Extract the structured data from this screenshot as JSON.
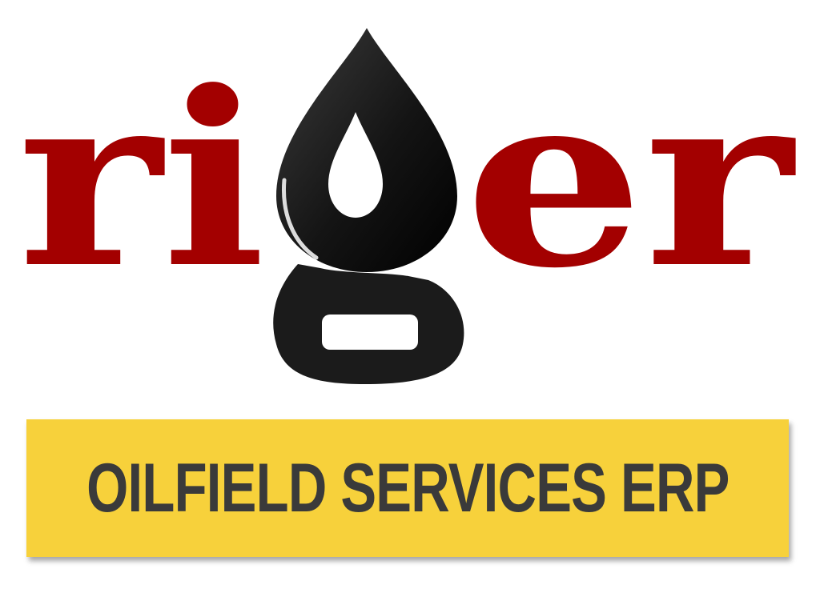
{
  "logo": {
    "wordmark_parts": [
      "ri",
      "er"
    ],
    "wordmark_text": "riger",
    "red_color": "#A30000",
    "black_color": "#1B1B1B"
  },
  "banner": {
    "text": "OILFIELD SERVICES ERP",
    "background_color": "#F7D13B",
    "text_color": "#3A3A3A"
  }
}
